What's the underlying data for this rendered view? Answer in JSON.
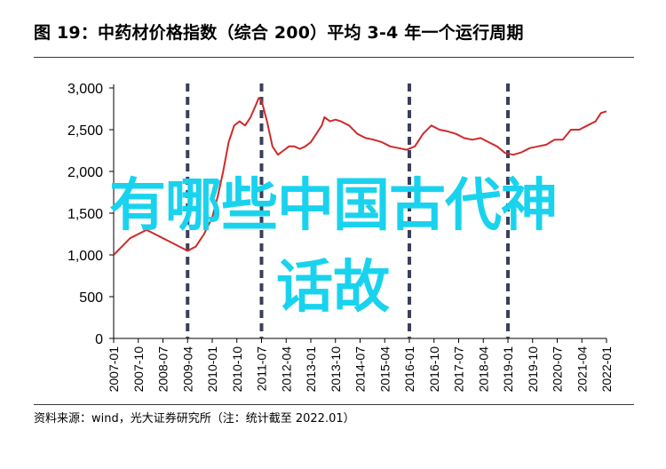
{
  "header": {
    "title": "图 19：中药材价格指数（综合 200）平均 3-4 年一个运行周期"
  },
  "footer": {
    "source": "资料来源：wind，光大证券研究所（注：统计截至 2022.01）"
  },
  "overlay": {
    "line1": "有哪些中国古代神",
    "line2": "话故"
  },
  "chart_data": {
    "type": "line",
    "title": "图 19：中药材价格指数（综合 200）平均 3-4 年一个运行周期",
    "xlabel": "",
    "ylabel": "",
    "ylim": [
      0,
      3000
    ],
    "yticks": [
      0,
      500,
      1000,
      1500,
      2000,
      2500,
      3000
    ],
    "ytick_labels": [
      "0",
      "500",
      "1,000",
      "1,500",
      "2,000",
      "2,500",
      "3,000"
    ],
    "xticks": [
      "2007-01",
      "2007-10",
      "2008-07",
      "2009-04",
      "2010-01",
      "2010-10",
      "2011-07",
      "2012-04",
      "2013-01",
      "2013-10",
      "2014-07",
      "2015-04",
      "2016-01",
      "2016-10",
      "2017-07",
      "2018-04",
      "2019-01",
      "2019-10",
      "2020-07",
      "2021-04",
      "2022-01"
    ],
    "cycle_markers": [
      "2009-04",
      "2011-07",
      "2016-01",
      "2019-01"
    ],
    "grid": false,
    "legend": "none",
    "colors": {
      "series": "#cf2a2a",
      "markers": "#3b3f5c",
      "axis": "#000000"
    },
    "series": [
      {
        "values": [
          [
            "2007-01",
            1000
          ],
          [
            "2007-04",
            1100
          ],
          [
            "2007-07",
            1200
          ],
          [
            "2007-10",
            1250
          ],
          [
            "2008-01",
            1300
          ],
          [
            "2008-04",
            1250
          ],
          [
            "2008-07",
            1200
          ],
          [
            "2008-10",
            1150
          ],
          [
            "2009-01",
            1100
          ],
          [
            "2009-04",
            1050
          ],
          [
            "2009-07",
            1100
          ],
          [
            "2009-10",
            1250
          ],
          [
            "2010-01",
            1450
          ],
          [
            "2010-03",
            1700
          ],
          [
            "2010-05",
            2000
          ],
          [
            "2010-07",
            2350
          ],
          [
            "2010-09",
            2550
          ],
          [
            "2010-11",
            2600
          ],
          [
            "2011-01",
            2550
          ],
          [
            "2011-03",
            2650
          ],
          [
            "2011-05",
            2800
          ],
          [
            "2011-06",
            2880
          ],
          [
            "2011-07",
            2850
          ],
          [
            "2011-09",
            2600
          ],
          [
            "2011-11",
            2300
          ],
          [
            "2012-01",
            2200
          ],
          [
            "2012-03",
            2250
          ],
          [
            "2012-05",
            2300
          ],
          [
            "2012-07",
            2300
          ],
          [
            "2012-09",
            2270
          ],
          [
            "2012-11",
            2300
          ],
          [
            "2013-01",
            2350
          ],
          [
            "2013-03",
            2450
          ],
          [
            "2013-05",
            2550
          ],
          [
            "2013-06",
            2650
          ],
          [
            "2013-08",
            2600
          ],
          [
            "2013-10",
            2620
          ],
          [
            "2013-12",
            2600
          ],
          [
            "2014-03",
            2550
          ],
          [
            "2014-06",
            2450
          ],
          [
            "2014-09",
            2400
          ],
          [
            "2014-12",
            2380
          ],
          [
            "2015-03",
            2350
          ],
          [
            "2015-06",
            2300
          ],
          [
            "2015-09",
            2280
          ],
          [
            "2015-12",
            2260
          ],
          [
            "2016-03",
            2300
          ],
          [
            "2016-06",
            2450
          ],
          [
            "2016-09",
            2550
          ],
          [
            "2016-12",
            2500
          ],
          [
            "2017-03",
            2480
          ],
          [
            "2017-06",
            2450
          ],
          [
            "2017-09",
            2400
          ],
          [
            "2017-12",
            2380
          ],
          [
            "2018-03",
            2400
          ],
          [
            "2018-06",
            2350
          ],
          [
            "2018-09",
            2300
          ],
          [
            "2018-12",
            2220
          ],
          [
            "2019-03",
            2200
          ],
          [
            "2019-06",
            2230
          ],
          [
            "2019-09",
            2280
          ],
          [
            "2019-12",
            2300
          ],
          [
            "2020-03",
            2320
          ],
          [
            "2020-06",
            2380
          ],
          [
            "2020-09",
            2380
          ],
          [
            "2020-12",
            2500
          ],
          [
            "2021-03",
            2500
          ],
          [
            "2021-06",
            2550
          ],
          [
            "2021-09",
            2600
          ],
          [
            "2021-11",
            2700
          ],
          [
            "2022-01",
            2720
          ]
        ]
      }
    ]
  }
}
